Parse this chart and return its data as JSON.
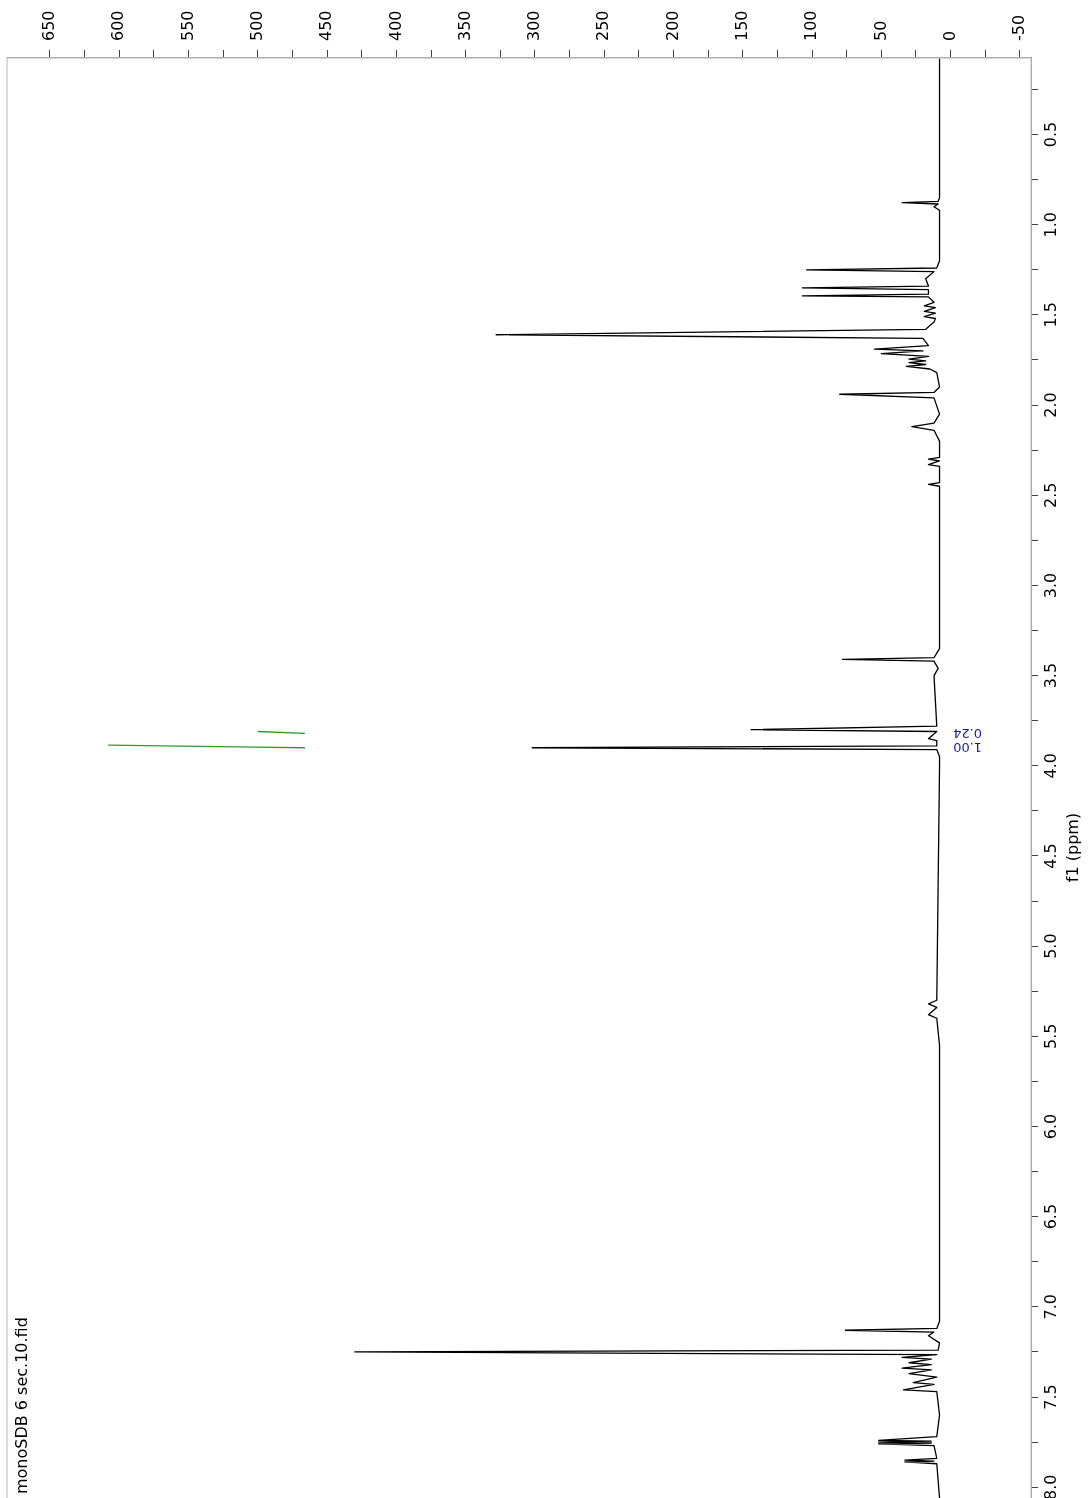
{
  "chart_data": {
    "type": "line",
    "title": "monoSDB 6 sec.10.fid",
    "ylabel": "f1 (ppm)",
    "ylim": [
      8.06,
      0.07
    ],
    "xlim": [
      681,
      -58
    ],
    "yticks": [
      {
        "value": 0.25,
        "label": null
      },
      {
        "value": 0.5,
        "label": "0.5"
      },
      {
        "value": 0.75,
        "label": null
      },
      {
        "value": 1,
        "label": "1.0"
      },
      {
        "value": 1.25,
        "label": null
      },
      {
        "value": 1.5,
        "label": "1.5"
      },
      {
        "value": 1.75,
        "label": null
      },
      {
        "value": 2,
        "label": "2.0"
      },
      {
        "value": 2.25,
        "label": null
      },
      {
        "value": 2.5,
        "label": "2.5"
      },
      {
        "value": 2.75,
        "label": null
      },
      {
        "value": 3,
        "label": "3.0"
      },
      {
        "value": 3.25,
        "label": null
      },
      {
        "value": 3.5,
        "label": "3.5"
      },
      {
        "value": 3.75,
        "label": null
      },
      {
        "value": 4,
        "label": "4.0"
      },
      {
        "value": 4.25,
        "label": null
      },
      {
        "value": 4.5,
        "label": "4.5"
      },
      {
        "value": 4.75,
        "label": null
      },
      {
        "value": 5,
        "label": "5.0"
      },
      {
        "value": 5.25,
        "label": null
      },
      {
        "value": 5.5,
        "label": "5.5"
      },
      {
        "value": 5.75,
        "label": null
      },
      {
        "value": 6,
        "label": "6.0"
      },
      {
        "value": 6.25,
        "label": null
      },
      {
        "value": 6.5,
        "label": "6.5"
      },
      {
        "value": 6.75,
        "label": null
      },
      {
        "value": 7,
        "label": "7.0"
      },
      {
        "value": 7.25,
        "label": null
      },
      {
        "value": 7.5,
        "label": "7.5"
      },
      {
        "value": 7.75,
        "label": null
      },
      {
        "value": 8,
        "label": "8.0"
      }
    ],
    "xticks": [
      -50,
      {
        "value": -25,
        "label": null
      },
      0,
      {
        "value": 25,
        "label": null
      },
      50,
      {
        "value": 75,
        "label": null
      },
      100,
      {
        "value": 125,
        "label": null
      },
      150,
      {
        "value": 175,
        "label": null
      },
      200,
      {
        "value": 225,
        "label": null
      },
      250,
      {
        "value": 275,
        "label": null
      },
      300,
      {
        "value": 325,
        "label": null
      },
      350,
      {
        "value": 375,
        "label": null
      },
      400,
      {
        "value": 425,
        "label": null
      },
      450,
      {
        "value": 475,
        "label": null
      },
      500,
      {
        "value": 525,
        "label": null
      },
      550,
      {
        "value": 575,
        "label": null
      },
      600,
      {
        "value": 625,
        "label": null
      },
      650
    ],
    "grid": false,
    "legend": false,
    "marker": "none",
    "series": [
      {
        "color": "#000000",
        "values": [
          0.07,
          0.85,
          0.87,
          0.878,
          0.885,
          0.9,
          0.92,
          1.2,
          1.24,
          1.25,
          1.26,
          1.3,
          1.34,
          1.35,
          1.36,
          1.385,
          1.394,
          1.4,
          1.43,
          1.45,
          1.46,
          1.48,
          1.49,
          1.51,
          1.52,
          1.54,
          1.58,
          1.61,
          1.63,
          1.67,
          1.69,
          1.7,
          1.715,
          1.73,
          1.745,
          1.755,
          1.765,
          1.775,
          1.785,
          1.8,
          1.82,
          1.9,
          1.93,
          1.94,
          1.96,
          2.05,
          2.1,
          2.12,
          2.14,
          2.2,
          2.29,
          2.3,
          2.31,
          2.33,
          2.34,
          2.43,
          2.44,
          2.45,
          3.35,
          3.4,
          3.41,
          3.42,
          3.46,
          3.5,
          3.78,
          3.8,
          3.81,
          3.85,
          3.86,
          3.89,
          3.9,
          3.91,
          3.95,
          4,
          5.3,
          5.32,
          5.34,
          5.38,
          5.4,
          5.55,
          7.08,
          7.12,
          7.13,
          7.14,
          7.16,
          7.2,
          7.24,
          7.25,
          7.265,
          7.28,
          7.29,
          7.31,
          7.32,
          7.34,
          7.35,
          7.37,
          7.39,
          7.42,
          7.43,
          7.46,
          7.47,
          7.6,
          7.72,
          7.74,
          7.745,
          7.75,
          7.755,
          7.76,
          7.77,
          7.84,
          7.85,
          7.855,
          7.86,
          7.87,
          8.06
        ],
        "x": [
          8,
          8,
          9,
          35,
          9,
          12,
          8,
          8,
          10,
          104,
          12,
          18,
          16,
          107,
          16,
          16,
          107,
          16,
          12,
          19,
          11,
          19,
          11,
          19,
          11,
          12,
          18,
          328,
          20,
          16,
          55,
          20,
          50,
          16,
          30,
          18,
          30,
          18,
          32,
          15,
          10,
          8,
          12,
          80,
          12,
          8,
          12,
          28,
          12,
          8,
          8,
          16,
          8,
          16,
          8,
          8,
          16,
          8,
          8,
          12,
          78,
          12,
          9,
          12,
          10,
          144,
          10,
          16,
          10,
          10,
          302,
          10,
          8,
          8,
          10,
          16,
          10,
          16,
          10,
          8,
          8,
          10,
          76,
          12,
          16,
          8,
          9,
          430,
          10,
          35,
          14,
          30,
          14,
          35,
          14,
          30,
          10,
          27,
          12,
          34,
          10,
          8,
          10,
          52,
          14,
          52,
          14,
          52,
          12,
          10,
          33,
          12,
          33,
          10,
          8
        ]
      },
      {
        "color": "#2e9a2e",
        "values": [
          3.81,
          3.82
        ],
        "x": [
          500,
          466
        ]
      },
      {
        "color": "#2e9a2e",
        "values": [
          3.886,
          3.9
        ],
        "x": [
          608,
          466
        ]
      }
    ],
    "annotations": [
      "0.24",
      "1.00"
    ]
  }
}
